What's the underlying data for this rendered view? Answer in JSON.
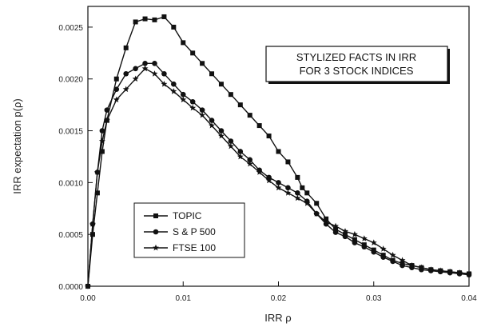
{
  "chart_data": {
    "type": "line",
    "title": [
      "STYLIZED FACTS IN IRR",
      "FOR 3 STOCK INDICES"
    ],
    "xlabel": "IRR ρ",
    "ylabel": "IRR expectation p(ρ)",
    "xlim": [
      0.0,
      0.04
    ],
    "ylim": [
      0.0,
      0.0027
    ],
    "x_ticks": [
      "0.00",
      "0.01",
      "0.02",
      "0.03",
      "0.04"
    ],
    "y_ticks": [
      "0.0000",
      "0.0005",
      "0.0010",
      "0.0015",
      "0.0020",
      "0.0025"
    ],
    "grid": false,
    "legend_position": "lower-left",
    "series": [
      {
        "name": "TOPIC",
        "marker": "square",
        "color": "#111111",
        "x": [
          0.0,
          0.0005,
          0.001,
          0.0015,
          0.002,
          0.003,
          0.004,
          0.005,
          0.006,
          0.007,
          0.008,
          0.009,
          0.01,
          0.011,
          0.012,
          0.013,
          0.014,
          0.015,
          0.016,
          0.017,
          0.018,
          0.019,
          0.02,
          0.021,
          0.022,
          0.0225,
          0.023,
          0.024,
          0.025,
          0.026,
          0.027,
          0.028,
          0.029,
          0.03,
          0.031,
          0.032,
          0.033,
          0.034,
          0.035,
          0.036,
          0.037,
          0.038,
          0.039,
          0.04
        ],
        "y": [
          0.0,
          0.0005,
          0.0009,
          0.0013,
          0.0016,
          0.002,
          0.0023,
          0.00255,
          0.00258,
          0.00257,
          0.0026,
          0.0025,
          0.00235,
          0.00225,
          0.00215,
          0.00205,
          0.00195,
          0.00185,
          0.00175,
          0.00165,
          0.00155,
          0.00145,
          0.0013,
          0.0012,
          0.00105,
          0.00095,
          0.0009,
          0.0008,
          0.00065,
          0.00055,
          0.0005,
          0.00045,
          0.0004,
          0.00035,
          0.0003,
          0.00025,
          0.00022,
          0.0002,
          0.00018,
          0.00016,
          0.00015,
          0.00014,
          0.00013,
          0.00012
        ]
      },
      {
        "name": "S & P 500",
        "marker": "circle",
        "color": "#111111",
        "x": [
          0.0,
          0.0005,
          0.001,
          0.0015,
          0.002,
          0.003,
          0.004,
          0.005,
          0.006,
          0.007,
          0.008,
          0.009,
          0.01,
          0.011,
          0.012,
          0.013,
          0.014,
          0.015,
          0.016,
          0.017,
          0.018,
          0.019,
          0.02,
          0.021,
          0.022,
          0.023,
          0.024,
          0.025,
          0.026,
          0.027,
          0.028,
          0.029,
          0.03,
          0.031,
          0.032,
          0.033,
          0.034,
          0.035,
          0.036,
          0.037,
          0.038,
          0.039,
          0.04
        ],
        "y": [
          0.0,
          0.0006,
          0.0011,
          0.0015,
          0.0017,
          0.0019,
          0.00205,
          0.0021,
          0.00215,
          0.00215,
          0.00205,
          0.00195,
          0.00185,
          0.00178,
          0.0017,
          0.0016,
          0.0015,
          0.0014,
          0.0013,
          0.00122,
          0.00112,
          0.00105,
          0.001,
          0.00095,
          0.0009,
          0.00082,
          0.0007,
          0.0006,
          0.00052,
          0.00048,
          0.00042,
          0.00038,
          0.00033,
          0.00028,
          0.00024,
          0.0002,
          0.00018,
          0.00016,
          0.00015,
          0.00014,
          0.00013,
          0.00012,
          0.00011
        ]
      },
      {
        "name": "FTSE 100",
        "marker": "star",
        "color": "#111111",
        "x": [
          0.0,
          0.0005,
          0.001,
          0.0015,
          0.002,
          0.003,
          0.004,
          0.005,
          0.006,
          0.007,
          0.008,
          0.009,
          0.01,
          0.011,
          0.012,
          0.013,
          0.014,
          0.015,
          0.016,
          0.017,
          0.018,
          0.019,
          0.02,
          0.021,
          0.022,
          0.023,
          0.024,
          0.025,
          0.026,
          0.027,
          0.028,
          0.029,
          0.03,
          0.031,
          0.032,
          0.033,
          0.034,
          0.035,
          0.036,
          0.037,
          0.038,
          0.039,
          0.04
        ],
        "y": [
          0.0,
          0.0006,
          0.0011,
          0.0014,
          0.0016,
          0.0018,
          0.0019,
          0.002,
          0.0021,
          0.00205,
          0.00195,
          0.00188,
          0.0018,
          0.00172,
          0.00165,
          0.00155,
          0.00145,
          0.00135,
          0.00125,
          0.00118,
          0.0011,
          0.00102,
          0.00095,
          0.0009,
          0.00085,
          0.0008,
          0.0007,
          0.00062,
          0.00058,
          0.00053,
          0.0005,
          0.00046,
          0.00042,
          0.00036,
          0.0003,
          0.00025,
          0.0002,
          0.00018,
          0.00016,
          0.00015,
          0.00014,
          0.00013,
          0.00012
        ]
      }
    ]
  }
}
